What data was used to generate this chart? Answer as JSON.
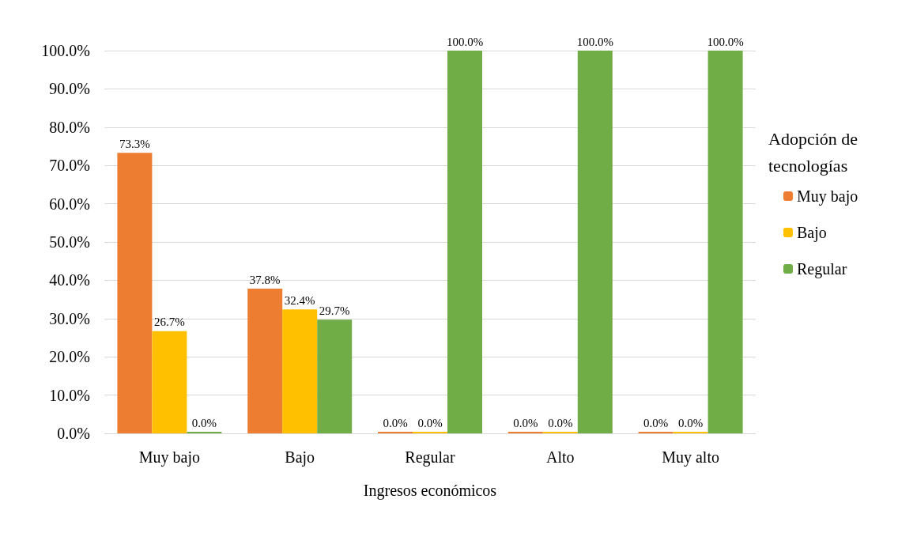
{
  "chart_data": {
    "type": "bar",
    "xlabel": "Ingresos económicos",
    "legend_title": "Adopción de tecnologías",
    "categories": [
      "Muy bajo",
      "Bajo",
      "Regular",
      "Alto",
      "Muy alto"
    ],
    "series": [
      {
        "name": "Muy bajo",
        "color": "#ed7d31",
        "values": [
          73.3,
          37.8,
          0,
          0,
          0
        ],
        "value_labels": [
          "73.3%",
          "37.8%",
          "0.0%",
          "0.0%",
          "0.0%"
        ]
      },
      {
        "name": "Bajo",
        "color": "#ffc000",
        "values": [
          26.7,
          32.4,
          0,
          0,
          0
        ],
        "value_labels": [
          "26.7%",
          "32.4%",
          "0.0%",
          "0.0%",
          "0.0%"
        ]
      },
      {
        "name": "Regular",
        "color": "#70ad47",
        "values": [
          0,
          29.7,
          100,
          100,
          100
        ],
        "value_labels": [
          "0.0%",
          "29.7%",
          "100.0%",
          "100.0%",
          "100.0%"
        ]
      }
    ],
    "ylim": [
      0,
      100
    ],
    "yticks": [
      {
        "value": 0,
        "label": "0.0%"
      },
      {
        "value": 10,
        "label": "10.0%"
      },
      {
        "value": 20,
        "label": "20.0%"
      },
      {
        "value": 30,
        "label": "30.0%"
      },
      {
        "value": 40,
        "label": "40.0%"
      },
      {
        "value": 50,
        "label": "50.0%"
      },
      {
        "value": 60,
        "label": "60.0%"
      },
      {
        "value": 70,
        "label": "70.0%"
      },
      {
        "value": 80,
        "label": "80.0%"
      },
      {
        "value": 90,
        "label": "90.0%"
      },
      {
        "value": 100,
        "label": "100.0%"
      }
    ],
    "grid": "y",
    "legend": "right"
  }
}
